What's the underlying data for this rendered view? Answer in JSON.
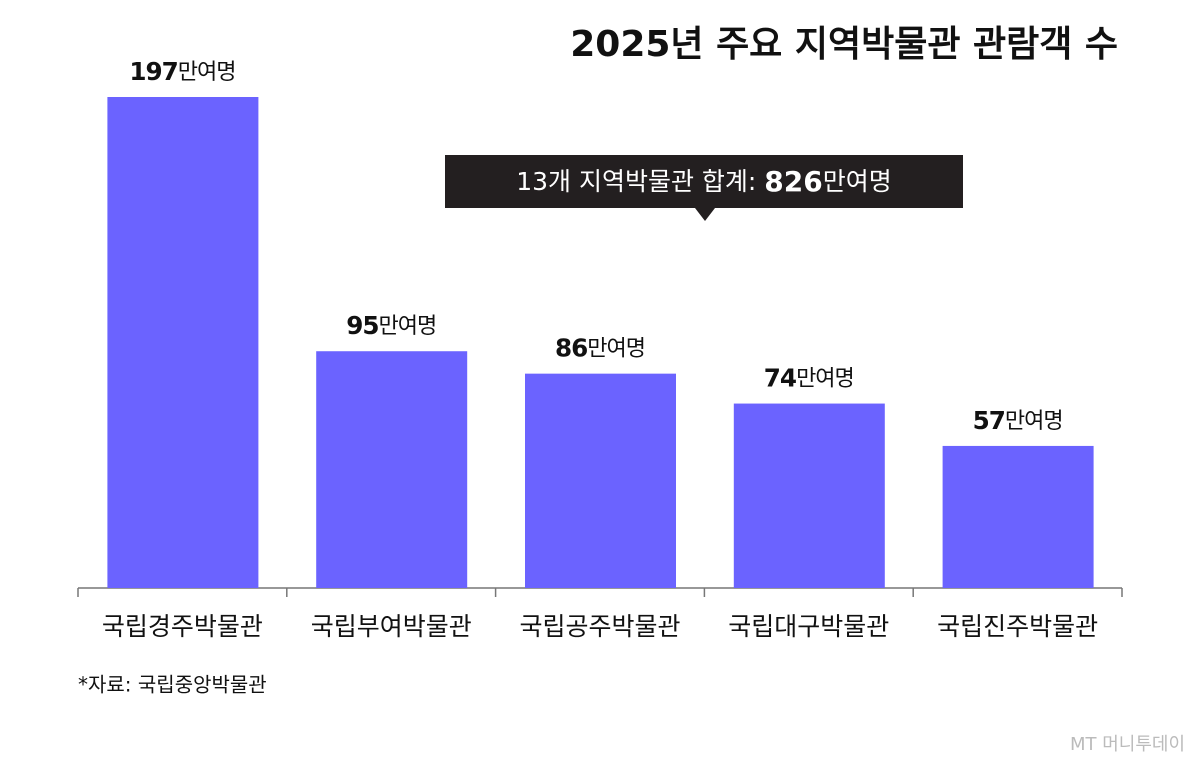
{
  "chart_data": {
    "type": "bar",
    "title": "2025년 주요 지역박물관 관람객 수",
    "categories": [
      "국립경주박물관",
      "국립부여박물관",
      "국립공주박물관",
      "국립대구박물관",
      "국립진주박물관"
    ],
    "values": [
      197,
      95,
      86,
      74,
      57
    ],
    "value_labels": [
      "197만여명",
      "95만여명",
      "86만여명",
      "74만여명",
      "57만여명"
    ],
    "color": "#6b63ff",
    "annotation": "13개 지역박물관 합계: 826만여명",
    "source": "*자료: 국립중앙박물관",
    "watermark": "MT 머니투데이"
  }
}
